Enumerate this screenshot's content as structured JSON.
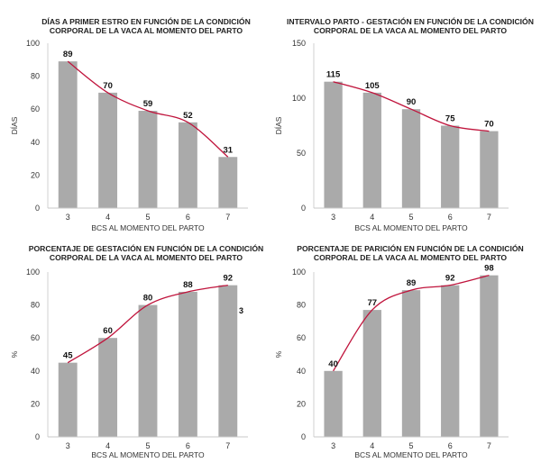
{
  "chart_data": [
    {
      "type": "bar",
      "title": [
        "DÍAS A PRIMER ESTRO EN FUNCIÓN DE LA CONDICIÓN",
        "CORPORAL DE LA VACA AL MOMENTO DEL PARTO"
      ],
      "categories": [
        "3",
        "4",
        "5",
        "6",
        "7"
      ],
      "values": [
        89,
        70,
        59,
        52,
        31
      ],
      "xlabel": "BCS AL MOMENTO DEL PARTO",
      "ylabel": "DÍAS",
      "ylim": [
        0,
        100
      ],
      "yticks": [
        0,
        20,
        40,
        60,
        80,
        100
      ],
      "trend": true,
      "bar_color": "#aaaaaa",
      "trend_color": "#c0143c"
    },
    {
      "type": "bar",
      "title": [
        "INTERVALO PARTO - GESTACIÓN EN FUNCIÓN DE LA CONDICIÓN",
        "CORPORAL DE LA VACA AL MOMENTO DEL PARTO"
      ],
      "categories": [
        "3",
        "4",
        "5",
        "6",
        "7"
      ],
      "values": [
        115,
        105,
        90,
        75,
        70
      ],
      "xlabel": "BCS AL MOMENTO DEL PARTO",
      "ylabel": "DÍAS",
      "ylim": [
        0,
        150
      ],
      "yticks": [
        0,
        50,
        100,
        150
      ],
      "trend": true,
      "bar_color": "#aaaaaa",
      "trend_color": "#c0143c"
    },
    {
      "type": "bar",
      "title": [
        "PORCENTAJE DE GESTACIÓN EN FUNCIÓN DE LA CONDICIÓN",
        "CORPORAL DE LA VACA AL MOMENTO DEL PARTO"
      ],
      "categories": [
        "3",
        "4",
        "5",
        "6",
        "7"
      ],
      "values": [
        45,
        60,
        80,
        88,
        92
      ],
      "xlabel": "BCS AL MOMENTO DEL PARTO",
      "ylabel": "%",
      "ylim": [
        0,
        100
      ],
      "yticks": [
        0,
        20,
        40,
        60,
        80,
        100
      ],
      "trend": true,
      "annotation": "3",
      "bar_color": "#aaaaaa",
      "trend_color": "#c0143c"
    },
    {
      "type": "bar",
      "title": [
        "PORCENTAJE DE PARICIÓN EN FUNCIÓN DE LA CONDICIÓN",
        "CORPORAL DE LA VACA AL MOMENTO DEL PARTO"
      ],
      "categories": [
        "3",
        "4",
        "5",
        "6",
        "7"
      ],
      "values": [
        40,
        77,
        89,
        92,
        98
      ],
      "xlabel": "BCS AL MOMENTO DEL PARTO",
      "ylabel": "%",
      "ylim": [
        0,
        100
      ],
      "yticks": [
        0,
        20,
        40,
        60,
        80,
        100
      ],
      "trend": true,
      "bar_color": "#aaaaaa",
      "trend_color": "#c0143c"
    }
  ]
}
